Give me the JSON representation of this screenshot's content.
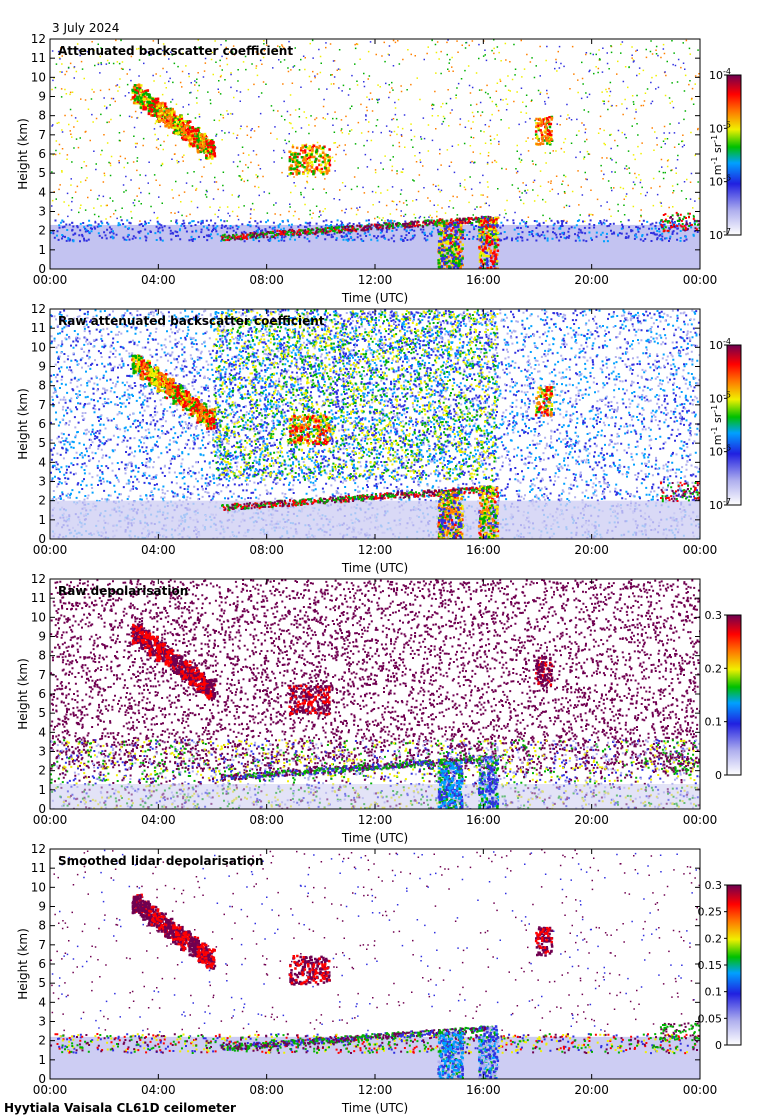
{
  "header": {
    "date": "3 July 2024"
  },
  "footer": {
    "instrument": "Hyytiala Vaisala CL61D ceilometer"
  },
  "colors": {
    "colormap": [
      "#ffffff",
      "#b0b0ee",
      "#3030e0",
      "#00a000",
      "#f0f000",
      "#ff6000",
      "#ff0000",
      "#700050"
    ]
  },
  "chart_data": [
    {
      "type": "heatmap",
      "title": "Attenuated backscatter coefficient",
      "xlabel": "Time (UTC)",
      "ylabel": "Height (km)",
      "x_ticks": [
        "00:00",
        "04:00",
        "08:00",
        "12:00",
        "16:00",
        "20:00",
        "00:00"
      ],
      "y_ticks": [
        "0",
        "1",
        "2",
        "3",
        "4",
        "5",
        "6",
        "7",
        "8",
        "9",
        "10",
        "11",
        "12"
      ],
      "xlim": [
        0,
        24
      ],
      "ylim": [
        0,
        12
      ],
      "colorbar": {
        "scale": "log",
        "range": [
          1e-07,
          0.0001
        ],
        "ticks": [
          {
            "base": "10",
            "exp": "-4"
          },
          {
            "base": "10",
            "exp": "-5"
          },
          {
            "base": "10",
            "exp": "-6"
          },
          {
            "base": "10",
            "exp": "-7"
          }
        ],
        "unit": "m-1 sr-1"
      },
      "mode": "backscatter"
    },
    {
      "type": "heatmap",
      "title": "Raw attenuated backscatter coefficient",
      "xlabel": "Time (UTC)",
      "ylabel": "Height (km)",
      "x_ticks": [
        "00:00",
        "04:00",
        "08:00",
        "12:00",
        "16:00",
        "20:00",
        "00:00"
      ],
      "y_ticks": [
        "0",
        "1",
        "2",
        "3",
        "4",
        "5",
        "6",
        "7",
        "8",
        "9",
        "10",
        "11",
        "12"
      ],
      "xlim": [
        0,
        24
      ],
      "ylim": [
        0,
        12
      ],
      "colorbar": {
        "scale": "log",
        "range": [
          1e-07,
          0.0001
        ],
        "ticks": [
          {
            "base": "10",
            "exp": "-4"
          },
          {
            "base": "10",
            "exp": "-5"
          },
          {
            "base": "10",
            "exp": "-6"
          },
          {
            "base": "10",
            "exp": "-7"
          }
        ],
        "unit": "m-1 sr-1"
      },
      "mode": "raw"
    },
    {
      "type": "heatmap",
      "title": "Raw depolarisation",
      "xlabel": "Time (UTC)",
      "ylabel": "Height (km)",
      "x_ticks": [
        "00:00",
        "04:00",
        "08:00",
        "12:00",
        "16:00",
        "20:00",
        "00:00"
      ],
      "y_ticks": [
        "0",
        "1",
        "2",
        "3",
        "4",
        "5",
        "6",
        "7",
        "8",
        "9",
        "10",
        "11",
        "12"
      ],
      "xlim": [
        0,
        24
      ],
      "ylim": [
        0,
        12
      ],
      "colorbar": {
        "scale": "linear",
        "range": [
          0,
          0.3
        ],
        "ticks": [
          "0.3",
          "0.2",
          "0.1",
          "0"
        ],
        "unit": ""
      },
      "mode": "rawdepol"
    },
    {
      "type": "heatmap",
      "title": "Smoothed lidar depolarisation",
      "xlabel": "Time (UTC)",
      "ylabel": "Height (km)",
      "x_ticks": [
        "00:00",
        "04:00",
        "08:00",
        "12:00",
        "16:00",
        "20:00",
        "00:00"
      ],
      "y_ticks": [
        "0",
        "1",
        "2",
        "3",
        "4",
        "5",
        "6",
        "7",
        "8",
        "9",
        "10",
        "11",
        "12"
      ],
      "xlim": [
        0,
        24
      ],
      "ylim": [
        0,
        12
      ],
      "colorbar": {
        "scale": "linear",
        "range": [
          0,
          0.3
        ],
        "ticks": [
          "0.3",
          "0.25",
          "0.2",
          "0.15",
          "0.1",
          "0.05",
          "0"
        ],
        "unit": ""
      },
      "mode": "smoothdepol"
    }
  ]
}
